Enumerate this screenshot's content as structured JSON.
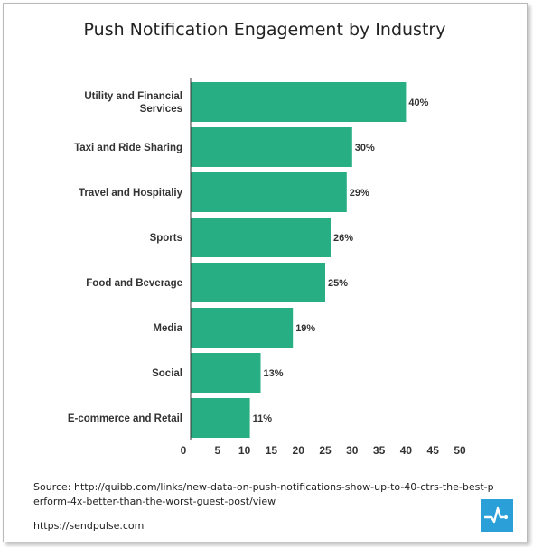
{
  "chart_data": {
    "type": "bar",
    "orientation": "horizontal",
    "title": "Push Notification Engagement by Industry",
    "categories": [
      "Utility and Financial Services",
      "Taxi and Ride Sharing",
      "Travel and Hospitaliy",
      "Sports",
      "Food and Beverage",
      "Media",
      "Social",
      "E-commerce and Retail"
    ],
    "category_lines": [
      [
        "Utility and Financial",
        "Services"
      ],
      [
        "Taxi and Ride Sharing"
      ],
      [
        "Travel and Hospitaliy"
      ],
      [
        "Sports"
      ],
      [
        "Food and Beverage"
      ],
      [
        "Media"
      ],
      [
        "Social"
      ],
      [
        "E-commerce and Retail"
      ]
    ],
    "values": [
      40,
      30,
      29,
      26,
      25,
      19,
      13,
      11
    ],
    "data_labels": [
      "40%",
      "30%",
      "29%",
      "26%",
      "25%",
      "19%",
      "13%",
      "11%"
    ],
    "xlim": [
      0,
      50
    ],
    "xticks": [
      "0",
      "5",
      "10",
      "15",
      "20",
      "25",
      "30",
      "35",
      "40",
      "45",
      "50"
    ],
    "xlabel": "",
    "ylabel": "",
    "grid": false,
    "bar_color": "#27ae83"
  },
  "footer": {
    "source": "Source: http://quibb.com/links/new-data-on-push-notifications-show-up-to-40-ctrs-the-best-perform-4x-better-than-the-worst-guest-post/view",
    "site": "https://sendpulse.com"
  },
  "logo": {
    "icon": "pulse-line-icon",
    "color": "#2a9fd8"
  }
}
